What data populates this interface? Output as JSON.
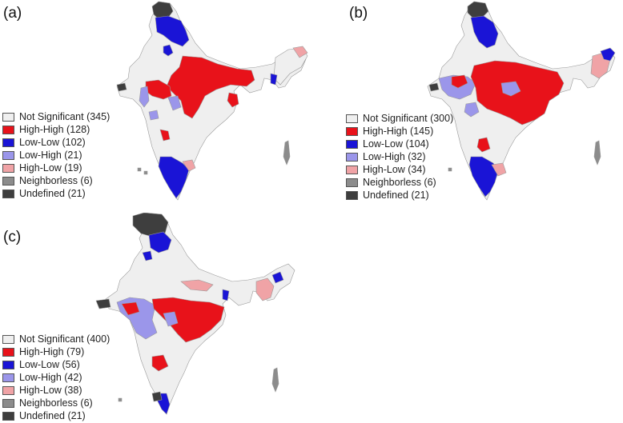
{
  "colors": {
    "not_significant": "#efefef",
    "high_high": "#e8121a",
    "low_low": "#1a14d6",
    "low_high": "#9b96ea",
    "high_low": "#f0a3a6",
    "neighborless": "#8c8c8c",
    "undefined": "#3e3e3e",
    "border": "#9a9a9a"
  },
  "panels": [
    {
      "label": "(a)",
      "legend": [
        {
          "key": "not_significant",
          "text": "Not Significant (345)"
        },
        {
          "key": "high_high",
          "text": "High-High (128)"
        },
        {
          "key": "low_low",
          "text": "Low-Low (102)"
        },
        {
          "key": "low_high",
          "text": "Low-High (21)"
        },
        {
          "key": "high_low",
          "text": "High-Low (19)"
        },
        {
          "key": "neighborless",
          "text": "Neighborless (6)"
        },
        {
          "key": "undefined",
          "text": "Undefined (21)"
        }
      ]
    },
    {
      "label": "(b)",
      "legend": [
        {
          "key": "not_significant",
          "text": "Not Significant (300)"
        },
        {
          "key": "high_high",
          "text": "High-High (145)"
        },
        {
          "key": "low_low",
          "text": "Low-Low (104)"
        },
        {
          "key": "low_high",
          "text": "Low-High (32)"
        },
        {
          "key": "high_low",
          "text": "High-Low (34)"
        },
        {
          "key": "neighborless",
          "text": "Neighborless (6)"
        },
        {
          "key": "undefined",
          "text": "Undefined (21)"
        }
      ]
    },
    {
      "label": "(c)",
      "legend": [
        {
          "key": "not_significant",
          "text": "Not Significant (400)"
        },
        {
          "key": "high_high",
          "text": "High-High (79)"
        },
        {
          "key": "low_low",
          "text": "Low-Low (56)"
        },
        {
          "key": "low_high",
          "text": "Low-High (42)"
        },
        {
          "key": "high_low",
          "text": "High-Low (38)"
        },
        {
          "key": "neighborless",
          "text": "Neighborless (6)"
        },
        {
          "key": "undefined",
          "text": "Undefined (21)"
        }
      ]
    }
  ]
}
